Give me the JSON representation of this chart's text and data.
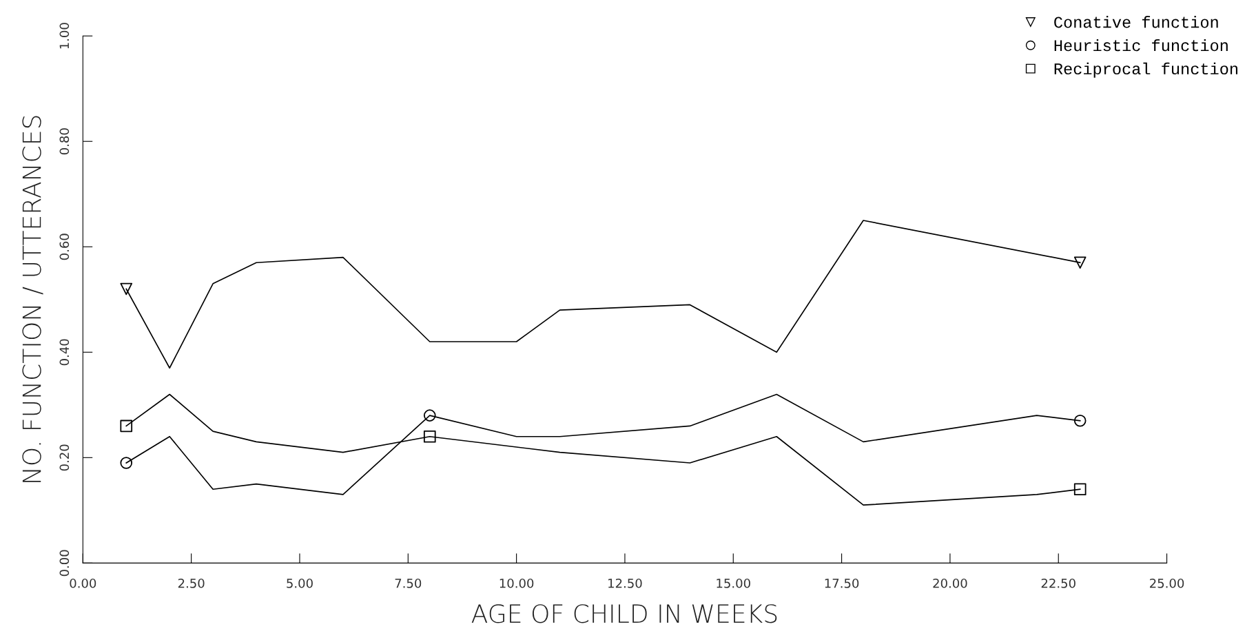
{
  "chart_data": {
    "type": "line",
    "xlabel": "AGE OF CHILD IN WEEKS",
    "ylabel": "NO. FUNCTION / UTTERANCES",
    "xlim": [
      0,
      25
    ],
    "ylim": [
      0,
      1
    ],
    "xticks": [
      {
        "value": 0,
        "label": "0.00"
      },
      {
        "value": 2.5,
        "label": "2.50"
      },
      {
        "value": 5,
        "label": "5.00"
      },
      {
        "value": 7.5,
        "label": "7.50"
      },
      {
        "value": 10,
        "label": "10.00"
      },
      {
        "value": 12.5,
        "label": "12.50"
      },
      {
        "value": 15,
        "label": "15.00"
      },
      {
        "value": 17.5,
        "label": "17.50"
      },
      {
        "value": 20,
        "label": "20.00"
      },
      {
        "value": 22.5,
        "label": "22.50"
      },
      {
        "value": 25,
        "label": "25.00"
      }
    ],
    "yticks": [
      {
        "value": 0,
        "label": "0.00"
      },
      {
        "value": 0.2,
        "label": "0.20"
      },
      {
        "value": 0.4,
        "label": "0.40"
      },
      {
        "value": 0.6,
        "label": "0.60"
      },
      {
        "value": 0.8,
        "label": "0.80"
      },
      {
        "value": 1,
        "label": "1.00"
      }
    ],
    "grid": false,
    "legend": "top right",
    "line_style": "solid",
    "series": [
      {
        "marker": "none",
        "color": "#000000",
        "x": [
          1,
          2,
          3,
          4,
          6,
          8,
          10,
          11,
          14,
          16,
          18,
          23
        ],
        "values": [
          0.52,
          0.37,
          0.53,
          0.57,
          0.58,
          0.42,
          0.42,
          0.48,
          0.49,
          0.4,
          0.65,
          0.57
        ]
      },
      {
        "marker": "none",
        "color": "#000000",
        "x": [
          1,
          2,
          3,
          4,
          6,
          8,
          10,
          11,
          14,
          16,
          18,
          22,
          23
        ],
        "values": [
          0.19,
          0.24,
          0.14,
          0.15,
          0.13,
          0.28,
          0.24,
          0.24,
          0.26,
          0.32,
          0.23,
          0.28,
          0.27
        ]
      },
      {
        "marker": "none",
        "color": "#000000",
        "x": [
          1,
          2,
          3,
          4,
          6,
          8,
          10,
          11,
          14,
          16,
          18,
          22,
          23
        ],
        "values": [
          0.26,
          0.32,
          0.25,
          0.23,
          0.21,
          0.24,
          0.22,
          0.21,
          0.19,
          0.24,
          0.11,
          0.13,
          0.14
        ]
      },
      {
        "type": "scatter",
        "marker": "triangle",
        "name": "Conative function",
        "color": "#000000",
        "x": [
          1,
          23
        ],
        "values": [
          0.52,
          0.57
        ]
      },
      {
        "type": "scatter",
        "marker": "circle",
        "name": "Heuristic function",
        "color": "#000000",
        "x": [
          1,
          8,
          23
        ],
        "values": [
          0.19,
          0.28,
          0.27
        ]
      },
      {
        "type": "scatter",
        "marker": "square",
        "name": "Reciprocal function",
        "color": "#000000",
        "x": [
          1,
          8,
          23
        ],
        "values": [
          0.26,
          0.24,
          0.14
        ]
      }
    ]
  }
}
